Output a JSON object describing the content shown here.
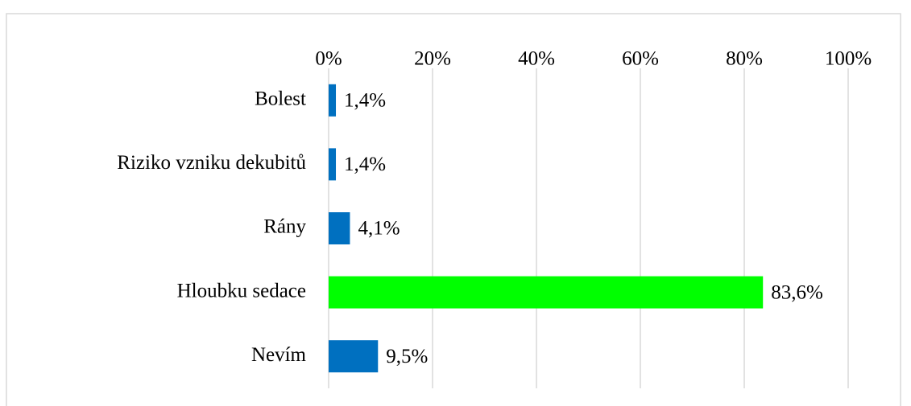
{
  "chart_data": {
    "type": "bar",
    "orientation": "horizontal",
    "categories": [
      "Bolest",
      "Riziko vzniku dekubitů",
      "Rány",
      "Hloubku sedace",
      "Nevím"
    ],
    "values": [
      1.4,
      1.4,
      4.1,
      83.6,
      9.5
    ],
    "value_labels": [
      "1,4%",
      "1,4%",
      "4,1%",
      "83,6%",
      "9,5%"
    ],
    "colors": [
      "#0070c0",
      "#0070c0",
      "#0070c0",
      "#00ff00",
      "#0070c0"
    ],
    "xlim": [
      0,
      100
    ],
    "xticks": [
      {
        "value": 0,
        "label": "0%"
      },
      {
        "value": 20,
        "label": "20%"
      },
      {
        "value": 40,
        "label": "40%"
      },
      {
        "value": 60,
        "label": "60%"
      },
      {
        "value": 80,
        "label": "80%"
      },
      {
        "value": 100,
        "label": "100%"
      }
    ],
    "grid": true
  }
}
